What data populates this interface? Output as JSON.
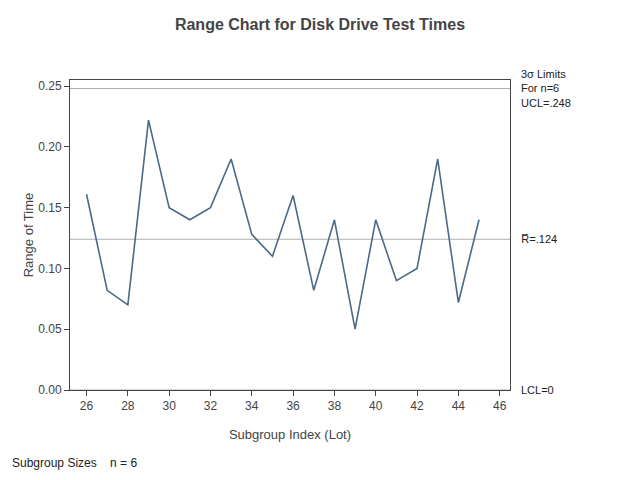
{
  "chart_data": {
    "type": "line",
    "title": "Range Chart for Disk Drive Test Times",
    "xlabel": "Subgroup Index (Lot)",
    "ylabel": "Range of Time",
    "x": [
      26,
      27,
      28,
      29,
      30,
      31,
      32,
      33,
      34,
      35,
      36,
      37,
      38,
      39,
      40,
      41,
      42,
      43,
      44,
      45
    ],
    "values": [
      0.161,
      0.082,
      0.07,
      0.222,
      0.15,
      0.14,
      0.15,
      0.19,
      0.128,
      0.11,
      0.16,
      0.082,
      0.14,
      0.05,
      0.14,
      0.09,
      0.1,
      0.19,
      0.072,
      0.14
    ],
    "color": "#4a6a8a",
    "reference_lines": [
      {
        "value": 0.248,
        "label": "3σ Limits\nFor n=6\nUCL=.248",
        "color": "#b0b0b0"
      },
      {
        "value": 0.0,
        "label": "LCL=0",
        "color": "#b0b0b0"
      },
      {
        "value": 0.124,
        "label": "R̅=.124",
        "color": "#b0b0b0"
      }
    ],
    "note": "Subgroup Sizes    n = 6",
    "xlim": [
      25.2,
      46.5
    ],
    "ylim": [
      0.0,
      0.255
    ],
    "xticks": [
      26,
      28,
      30,
      32,
      34,
      36,
      38,
      40,
      42,
      44,
      46
    ],
    "yticks": [
      {
        "value": 0.0,
        "label": "0.00"
      },
      {
        "value": 0.05,
        "label": "0.05"
      },
      {
        "value": 0.1,
        "label": "0.10"
      },
      {
        "value": 0.15,
        "label": "0.15"
      },
      {
        "value": 0.2,
        "label": "0.20"
      },
      {
        "value": 0.25,
        "label": "0.25"
      }
    ],
    "grid": false
  }
}
